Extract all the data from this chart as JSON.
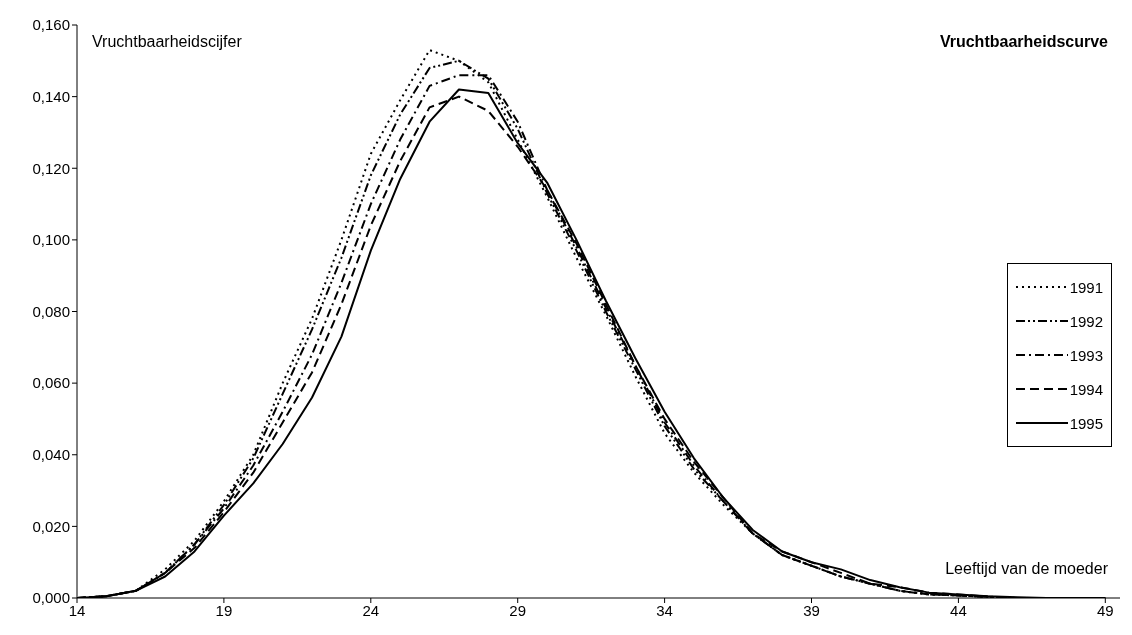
{
  "chart_data": {
    "type": "line",
    "title": "Vruchtbaarheidscurve",
    "xlabel": "Leeftijd van de moeder",
    "ylabel": "Vruchtbaarheidscijfer",
    "x": [
      14,
      15,
      16,
      17,
      18,
      19,
      20,
      21,
      22,
      23,
      24,
      25,
      26,
      27,
      28,
      29,
      30,
      31,
      32,
      33,
      34,
      35,
      36,
      37,
      38,
      39,
      40,
      41,
      42,
      43,
      44,
      45,
      46,
      47,
      48,
      49
    ],
    "series": [
      {
        "name": "1991",
        "color": "#000000",
        "line_style": "dotted",
        "values": [
          0,
          0.0005,
          0.002,
          0.008,
          0.016,
          0.027,
          0.04,
          0.06,
          0.078,
          0.1,
          0.124,
          0.139,
          0.153,
          0.15,
          0.144,
          0.128,
          0.112,
          0.095,
          0.079,
          0.062,
          0.046,
          0.035,
          0.026,
          0.018,
          0.012,
          0.009,
          0.006,
          0.004,
          0.002,
          0.001,
          0.0007,
          0.0003,
          0,
          0,
          0,
          0
        ]
      },
      {
        "name": "1992",
        "color": "#000000",
        "line_style": "dashdotdot",
        "values": [
          0,
          0.0005,
          0.002,
          0.007,
          0.015,
          0.026,
          0.039,
          0.057,
          0.075,
          0.095,
          0.118,
          0.135,
          0.148,
          0.15,
          0.145,
          0.131,
          0.113,
          0.097,
          0.08,
          0.064,
          0.048,
          0.036,
          0.027,
          0.018,
          0.012,
          0.009,
          0.006,
          0.004,
          0.002,
          0.001,
          0.0007,
          0.0003,
          0,
          0,
          0,
          0
        ]
      },
      {
        "name": "1993",
        "color": "#000000",
        "line_style": "dashdot",
        "values": [
          0,
          0.0005,
          0.002,
          0.007,
          0.015,
          0.025,
          0.037,
          0.052,
          0.068,
          0.088,
          0.11,
          0.128,
          0.143,
          0.146,
          0.146,
          0.133,
          0.114,
          0.098,
          0.081,
          0.065,
          0.049,
          0.037,
          0.027,
          0.018,
          0.012,
          0.009,
          0.006,
          0.004,
          0.002,
          0.001,
          0.0007,
          0.0003,
          0,
          0,
          0,
          0
        ]
      },
      {
        "name": "1994",
        "color": "#000000",
        "line_style": "dashed",
        "values": [
          0,
          0.0005,
          0.002,
          0.007,
          0.014,
          0.024,
          0.035,
          0.049,
          0.063,
          0.082,
          0.104,
          0.122,
          0.137,
          0.14,
          0.136,
          0.126,
          0.114,
          0.099,
          0.082,
          0.065,
          0.05,
          0.038,
          0.028,
          0.018,
          0.013,
          0.01,
          0.007,
          0.004,
          0.003,
          0.0015,
          0.001,
          0.0004,
          0,
          0,
          0,
          0
        ]
      },
      {
        "name": "1995",
        "color": "#000000",
        "line_style": "solid",
        "values": [
          0,
          0.0005,
          0.002,
          0.006,
          0.013,
          0.023,
          0.032,
          0.043,
          0.056,
          0.073,
          0.097,
          0.117,
          0.133,
          0.142,
          0.141,
          0.127,
          0.116,
          0.1,
          0.083,
          0.067,
          0.052,
          0.039,
          0.028,
          0.019,
          0.013,
          0.01,
          0.008,
          0.005,
          0.003,
          0.0015,
          0.001,
          0.0005,
          0.0002,
          0,
          0,
          0
        ]
      }
    ],
    "xlim": [
      14,
      49.5
    ],
    "xticks": [
      14,
      19,
      24,
      29,
      34,
      39,
      44,
      49
    ],
    "ylim": [
      0,
      0.16
    ],
    "yticks": [
      {
        "value": 0,
        "label": "0,000"
      },
      {
        "value": 0.02,
        "label": "0,020"
      },
      {
        "value": 0.04,
        "label": "0,040"
      },
      {
        "value": 0.06,
        "label": "0,060"
      },
      {
        "value": 0.08,
        "label": "0,080"
      },
      {
        "value": 0.1,
        "label": "0,100"
      },
      {
        "value": 0.12,
        "label": "0,120"
      },
      {
        "value": 0.14,
        "label": "0,140"
      },
      {
        "value": 0.16,
        "label": "0,160"
      }
    ],
    "grid": false,
    "legend": "right",
    "marker": "none"
  }
}
